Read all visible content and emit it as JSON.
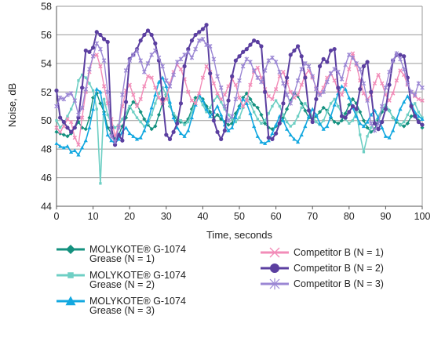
{
  "chart_data": {
    "type": "line",
    "xlabel": "Time, seconds",
    "ylabel": "Noise, dB",
    "xlim": [
      0,
      100
    ],
    "ylim": [
      44,
      58
    ],
    "x_ticks": [
      0,
      10,
      20,
      30,
      40,
      50,
      60,
      70,
      80,
      90,
      100
    ],
    "y_ticks": [
      44,
      46,
      48,
      50,
      52,
      54,
      56,
      58
    ],
    "grid": "horizontal",
    "legend_position": "bottom",
    "series": [
      {
        "name": "MOLYKOTE® G-1074 Grease (N = 1)",
        "color": "#14917f",
        "marker": "diamond",
        "x": [
          0,
          1,
          2,
          3,
          4,
          5,
          6,
          7,
          8,
          9,
          10,
          11,
          12,
          13,
          14,
          15,
          16,
          17,
          18,
          19,
          20,
          21,
          22,
          23,
          24,
          25,
          26,
          27,
          28,
          29,
          30,
          31,
          32,
          33,
          34,
          35,
          36,
          37,
          38,
          39,
          40,
          41,
          42,
          43,
          44,
          45,
          46,
          47,
          48,
          49,
          50,
          51,
          52,
          53,
          54,
          55,
          56,
          57,
          58,
          59,
          60,
          61,
          62,
          63,
          64,
          65,
          66,
          67,
          68,
          69,
          70,
          71,
          72,
          73,
          74,
          75,
          76,
          77,
          78,
          79,
          80,
          81,
          82,
          83,
          84,
          85,
          86,
          87,
          88,
          89,
          90,
          91,
          92,
          93,
          94,
          95,
          96,
          97,
          98,
          99,
          100
        ],
        "y": [
          49.2,
          49.1,
          49.0,
          48.9,
          49.1,
          49.5,
          49.9,
          49.5,
          49.4,
          50.2,
          51.6,
          51.9,
          51.2,
          50.6,
          49.5,
          49.1,
          48.8,
          49.0,
          49.6,
          50.2,
          50.9,
          51.3,
          51.1,
          50.6,
          50.1,
          49.7,
          49.4,
          49.6,
          50.4,
          51.2,
          51.8,
          51.0,
          50.4,
          50.0,
          49.9,
          49.8,
          50.1,
          50.8,
          51.6,
          51.7,
          51.5,
          51.0,
          50.6,
          50.2,
          50.4,
          50.1,
          49.9,
          49.7,
          49.8,
          50.5,
          51.0,
          51.6,
          51.9,
          51.5,
          51.1,
          50.9,
          50.4,
          49.8,
          49.5,
          49.4,
          49.6,
          49.8,
          50.2,
          50.8,
          51.4,
          51.9,
          51.7,
          51.2,
          50.7,
          50.2,
          50.1,
          50.3,
          50.6,
          50.9,
          50.7,
          50.2,
          49.9,
          49.8,
          50.0,
          50.5,
          51.1,
          51.5,
          51.2,
          50.6,
          50.0,
          49.5,
          49.2,
          49.4,
          50.0,
          50.6,
          51.0,
          50.7,
          50.2,
          49.9,
          49.7,
          49.6,
          49.8,
          50.3,
          50.4,
          50.0,
          49.5
        ]
      },
      {
        "name": "MOLYKOTE® G-1074 Grease (N = 2)",
        "color": "#6ecfc4",
        "marker": "square",
        "x": [
          0,
          1,
          2,
          3,
          4,
          5,
          6,
          7,
          8,
          9,
          10,
          11,
          12,
          13,
          14,
          15,
          16,
          17,
          18,
          19,
          20,
          21,
          22,
          23,
          24,
          25,
          26,
          27,
          28,
          29,
          30,
          31,
          32,
          33,
          34,
          35,
          36,
          37,
          38,
          39,
          40,
          41,
          42,
          43,
          44,
          45,
          46,
          47,
          48,
          49,
          50,
          51,
          52,
          53,
          54,
          55,
          56,
          57,
          58,
          59,
          60,
          61,
          62,
          63,
          64,
          65,
          66,
          67,
          68,
          69,
          70,
          71,
          72,
          73,
          74,
          75,
          76,
          77,
          78,
          79,
          80,
          81,
          82,
          83,
          84,
          85,
          86,
          87,
          88,
          89,
          90,
          91,
          92,
          93,
          94,
          95,
          96,
          97,
          98,
          99,
          100
        ],
        "y": [
          50.0,
          49.5,
          49.8,
          50.3,
          50.8,
          51.4,
          52.8,
          53.2,
          53.0,
          52.6,
          52.1,
          50.8,
          45.6,
          51.5,
          50.4,
          49.8,
          49.5,
          49.7,
          50.1,
          50.5,
          51.0,
          50.6,
          50.2,
          49.9,
          49.6,
          49.8,
          50.4,
          51.2,
          51.9,
          52.3,
          51.8,
          51.0,
          50.5,
          50.2,
          50.0,
          49.7,
          49.9,
          50.6,
          51.3,
          51.6,
          51.1,
          50.6,
          50.9,
          51.4,
          51.7,
          51.3,
          50.8,
          50.4,
          50.1,
          49.9,
          50.2,
          50.9,
          51.5,
          51.2,
          50.6,
          50.1,
          49.8,
          50.0,
          50.5,
          51.0,
          51.4,
          51.0,
          50.4,
          49.9,
          49.6,
          49.8,
          50.3,
          50.9,
          51.2,
          50.8,
          50.3,
          49.9,
          49.7,
          50.0,
          50.6,
          51.2,
          51.5,
          51.0,
          50.5,
          50.1,
          49.8,
          50.0,
          50.6,
          49.0,
          47.8,
          48.9,
          49.5,
          49.9,
          50.3,
          50.8,
          51.1,
          50.7,
          50.2,
          50.0,
          49.7,
          49.9,
          50.4,
          50.9,
          51.2,
          50.6,
          50.2
        ]
      },
      {
        "name": "MOLYKOTE® G-1074 Grease (N = 3)",
        "color": "#13a8e0",
        "marker": "triangle",
        "x": [
          0,
          1,
          2,
          3,
          4,
          5,
          6,
          7,
          8,
          9,
          10,
          11,
          12,
          13,
          14,
          15,
          16,
          17,
          18,
          19,
          20,
          21,
          22,
          23,
          24,
          25,
          26,
          27,
          28,
          29,
          30,
          31,
          32,
          33,
          34,
          35,
          36,
          37,
          38,
          39,
          40,
          41,
          42,
          43,
          44,
          45,
          46,
          47,
          48,
          49,
          50,
          51,
          52,
          53,
          54,
          55,
          56,
          57,
          58,
          59,
          60,
          61,
          62,
          63,
          64,
          65,
          66,
          67,
          68,
          69,
          70,
          71,
          72,
          73,
          74,
          75,
          76,
          77,
          78,
          79,
          80,
          81,
          82,
          83,
          84,
          85,
          86,
          87,
          88,
          89,
          90,
          91,
          92,
          93,
          94,
          95,
          96,
          97,
          98,
          99,
          100
        ],
        "y": [
          48.4,
          48.2,
          48.1,
          48.2,
          47.8,
          47.9,
          47.6,
          48.1,
          48.6,
          49.5,
          50.8,
          52.2,
          52.0,
          50.5,
          49.0,
          48.6,
          48.4,
          48.7,
          49.2,
          49.5,
          49.1,
          48.9,
          48.7,
          48.8,
          49.3,
          50.0,
          50.9,
          51.8,
          52.7,
          53.0,
          52.4,
          51.3,
          50.2,
          49.5,
          49.1,
          48.9,
          49.3,
          50.2,
          51.1,
          51.8,
          51.4,
          50.8,
          50.3,
          50.6,
          51.0,
          50.4,
          49.7,
          49.3,
          49.5,
          50.2,
          50.9,
          51.5,
          51.2,
          50.5,
          49.6,
          48.9,
          48.5,
          48.4,
          48.6,
          49.1,
          49.7,
          50.3,
          50.0,
          49.4,
          49.0,
          48.7,
          48.5,
          49.0,
          49.6,
          50.3,
          50.8,
          50.4,
          49.8,
          49.4,
          49.6,
          50.3,
          51.1,
          51.9,
          52.4,
          52.2,
          51.6,
          50.9,
          50.3,
          49.8,
          49.6,
          49.9,
          50.4,
          50.7,
          50.2,
          49.5,
          48.9,
          48.8,
          49.3,
          50.1,
          50.8,
          51.3,
          51.7,
          51.2,
          50.6,
          50.3,
          50.1
        ]
      },
      {
        "name": "Competitor B (N = 1)",
        "color": "#f28cb8",
        "marker": "x",
        "x": [
          0,
          1,
          2,
          3,
          4,
          5,
          6,
          7,
          8,
          9,
          10,
          11,
          12,
          13,
          14,
          15,
          16,
          17,
          18,
          19,
          20,
          21,
          22,
          23,
          24,
          25,
          26,
          27,
          28,
          29,
          30,
          31,
          32,
          33,
          34,
          35,
          36,
          37,
          38,
          39,
          40,
          41,
          42,
          43,
          44,
          45,
          46,
          47,
          48,
          49,
          50,
          51,
          52,
          53,
          54,
          55,
          56,
          57,
          58,
          59,
          60,
          61,
          62,
          63,
          64,
          65,
          66,
          67,
          68,
          69,
          70,
          71,
          72,
          73,
          74,
          75,
          76,
          77,
          78,
          79,
          80,
          81,
          82,
          83,
          84,
          85,
          86,
          87,
          88,
          89,
          90,
          91,
          92,
          93,
          94,
          95,
          96,
          97,
          98,
          99,
          100
        ],
        "y": [
          49.5,
          49.2,
          49.6,
          50.1,
          49.9,
          48.8,
          48.3,
          50.2,
          52.0,
          53.4,
          54.5,
          54.6,
          53.8,
          52.4,
          51.2,
          50.1,
          48.9,
          49.6,
          51.0,
          52.1,
          52.5,
          51.8,
          51.0,
          51.5,
          52.4,
          53.1,
          53.0,
          52.3,
          51.6,
          51.2,
          51.5,
          52.6,
          53.4,
          53.9,
          53.6,
          52.9,
          52.0,
          51.4,
          51.2,
          51.9,
          53.0,
          53.8,
          53.4,
          52.6,
          51.9,
          51.5,
          51.8,
          52.4,
          52.9,
          52.5,
          51.6,
          51.0,
          51.4,
          52.5,
          53.4,
          53.7,
          53.0,
          52.2,
          51.7,
          51.5,
          52.2,
          53.1,
          53.4,
          52.7,
          52.0,
          51.6,
          51.8,
          52.5,
          53.2,
          53.5,
          53.0,
          52.3,
          51.9,
          52.3,
          53.0,
          53.3,
          52.8,
          52.1,
          51.8,
          52.5,
          53.6,
          54.7,
          53.9,
          52.8,
          51.9,
          51.5,
          51.8,
          52.6,
          53.2,
          52.6,
          51.8,
          51.4,
          51.9,
          52.8,
          53.5,
          53.2,
          52.5,
          52.0,
          51.7,
          51.5,
          51.4
        ]
      },
      {
        "name": "Competitor B (N = 2)",
        "color": "#5b3fa0",
        "marker": "circle",
        "x": [
          0,
          1,
          2,
          3,
          4,
          5,
          6,
          7,
          8,
          9,
          10,
          11,
          12,
          13,
          14,
          15,
          16,
          17,
          18,
          19,
          20,
          21,
          22,
          23,
          24,
          25,
          26,
          27,
          28,
          29,
          30,
          31,
          32,
          33,
          34,
          35,
          36,
          37,
          38,
          39,
          40,
          41,
          42,
          43,
          44,
          45,
          46,
          47,
          48,
          49,
          50,
          51,
          52,
          53,
          54,
          55,
          56,
          57,
          58,
          59,
          60,
          61,
          62,
          63,
          64,
          65,
          66,
          67,
          68,
          69,
          70,
          71,
          72,
          73,
          74,
          75,
          76,
          77,
          78,
          79,
          80,
          81,
          82,
          83,
          84,
          85,
          86,
          87,
          88,
          89,
          90,
          91,
          92,
          93,
          94,
          95,
          96,
          97,
          98,
          99,
          100
        ],
        "y": [
          52.1,
          50.2,
          49.9,
          49.5,
          49.2,
          49.5,
          50.2,
          52.3,
          54.9,
          54.8,
          55.1,
          56.2,
          56.0,
          55.7,
          55.5,
          49.5,
          48.3,
          49.0,
          48.6,
          51.3,
          54.3,
          54.6,
          55.0,
          55.6,
          56.0,
          56.3,
          56.0,
          55.4,
          54.2,
          51.5,
          49.0,
          48.7,
          49.2,
          49.8,
          51.2,
          53.8,
          55.0,
          55.6,
          56.0,
          56.2,
          56.4,
          56.7,
          53.3,
          50.0,
          49.2,
          48.7,
          49.3,
          51.4,
          53.1,
          54.2,
          54.5,
          54.8,
          55.0,
          55.3,
          55.6,
          55.5,
          55.2,
          52.0,
          48.8,
          48.7,
          49.1,
          49.8,
          51.2,
          53.0,
          54.6,
          54.9,
          55.2,
          54.5,
          53.0,
          50.7,
          49.9,
          51.5,
          53.8,
          54.3,
          54.1,
          54.9,
          55.0,
          52.3,
          50.3,
          50.2,
          50.6,
          51.0,
          50.8,
          52.2,
          53.8,
          54.1,
          52.0,
          49.8,
          49.4,
          49.9,
          50.8,
          52.5,
          54.2,
          54.6,
          54.6,
          54.5,
          53.0,
          51.0,
          50.3,
          49.9,
          49.7
        ]
      },
      {
        "name": "Competitor B (N = 3)",
        "color": "#9b87d4",
        "marker": "star",
        "x": [
          0,
          1,
          2,
          3,
          4,
          5,
          6,
          7,
          8,
          9,
          10,
          11,
          12,
          13,
          14,
          15,
          16,
          17,
          18,
          19,
          20,
          21,
          22,
          23,
          24,
          25,
          26,
          27,
          28,
          29,
          30,
          31,
          32,
          33,
          34,
          35,
          36,
          37,
          38,
          39,
          40,
          41,
          42,
          43,
          44,
          45,
          46,
          47,
          48,
          49,
          50,
          51,
          52,
          53,
          54,
          55,
          56,
          57,
          58,
          59,
          60,
          61,
          62,
          63,
          64,
          65,
          66,
          67,
          68,
          69,
          70,
          71,
          72,
          73,
          74,
          75,
          76,
          77,
          78,
          79,
          80,
          81,
          82,
          83,
          84,
          85,
          86,
          87,
          88,
          89,
          90,
          91,
          92,
          93,
          94,
          95,
          96,
          97,
          98,
          99,
          100
        ],
        "y": [
          51.0,
          51.6,
          51.5,
          51.8,
          51.9,
          51.4,
          50.4,
          50.9,
          52.2,
          53.6,
          54.5,
          55.4,
          55.0,
          54.2,
          52.0,
          48.9,
          48.5,
          49.5,
          51.8,
          53.5,
          54.2,
          54.6,
          54.9,
          54.2,
          53.4,
          54.0,
          54.6,
          54.9,
          54.4,
          53.8,
          52.8,
          52.4,
          53.2,
          54.1,
          54.3,
          54.6,
          54.8,
          54.4,
          55.0,
          55.6,
          55.7,
          55.3,
          55.2,
          54.3,
          53.1,
          52.3,
          51.0,
          50.0,
          50.3,
          51.5,
          52.8,
          53.8,
          54.3,
          54.1,
          53.5,
          53.0,
          52.7,
          53.5,
          54.2,
          54.4,
          54.1,
          53.4,
          52.6,
          51.8,
          51.2,
          51.9,
          52.8,
          53.6,
          54.0,
          53.8,
          53.1,
          52.2,
          51.8,
          52.0,
          52.7,
          53.3,
          53.6,
          53.4,
          52.9,
          53.9,
          54.6,
          54.4,
          54.0,
          53.6,
          52.6,
          51.4,
          49.8,
          49.3,
          49.8,
          51.0,
          52.3,
          53.4,
          54.2,
          54.7,
          54.3,
          53.6,
          52.6,
          52.0,
          51.8,
          52.6,
          52.3
        ]
      }
    ]
  }
}
